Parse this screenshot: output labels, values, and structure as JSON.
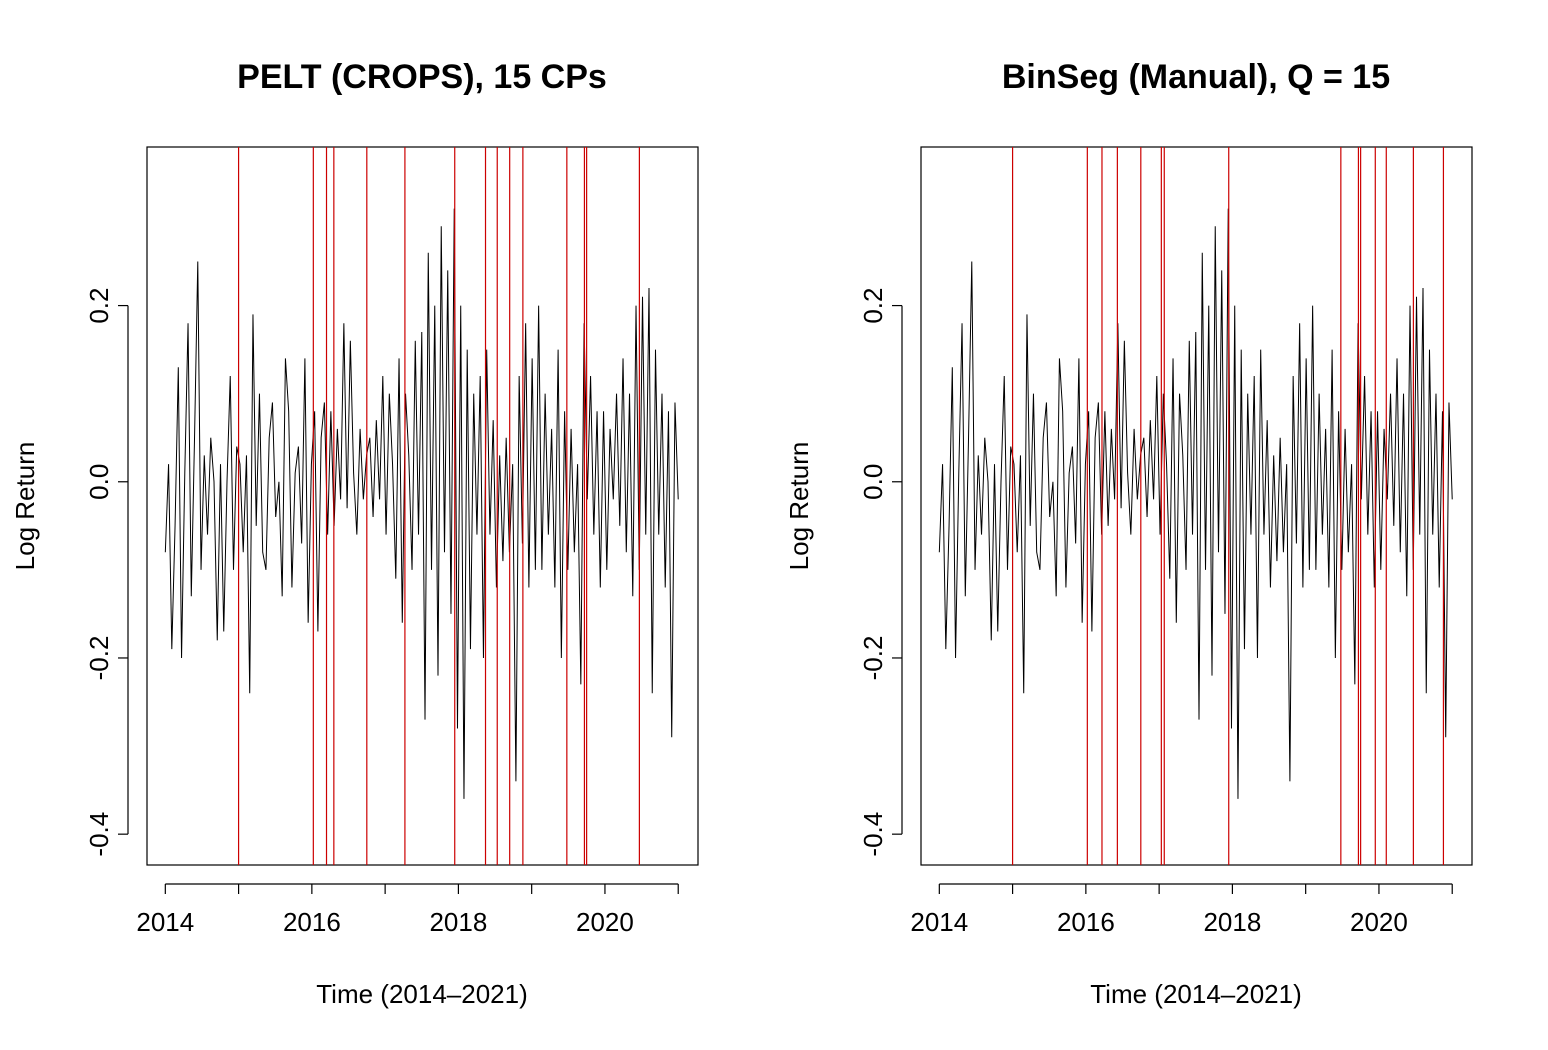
{
  "chart_data": [
    {
      "type": "line",
      "title": "PELT (CROPS), 15 CPs",
      "xlabel": "Time (2014–2021)",
      "ylabel": "Log Return",
      "xlim": [
        2013.75,
        2021.27
      ],
      "ylim": [
        -0.435,
        0.38
      ],
      "x_ticks": [
        2014,
        2015,
        2016,
        2017,
        2018,
        2019,
        2020,
        2021
      ],
      "x_tick_labels": [
        "2014",
        "",
        "2016",
        "",
        "2018",
        "",
        "2020",
        ""
      ],
      "y_ticks": [
        -0.4,
        -0.2,
        0.0,
        0.2
      ],
      "y_tick_labels": [
        "-0.4",
        "-0.2",
        "0.0",
        "0.2"
      ],
      "grid": false,
      "series": [
        {
          "color": "#000000",
          "x_start": 2014.0,
          "x_end": 2021.0,
          "values": [
            -0.08,
            0.02,
            -0.19,
            -0.05,
            0.13,
            -0.2,
            0.01,
            0.18,
            -0.13,
            0.05,
            0.25,
            -0.1,
            0.03,
            -0.06,
            0.05,
            0.0,
            -0.18,
            0.02,
            -0.17,
            0.0,
            0.12,
            -0.1,
            0.04,
            0.02,
            -0.08,
            0.03,
            -0.24,
            0.19,
            -0.05,
            0.1,
            -0.08,
            -0.1,
            0.05,
            0.09,
            -0.04,
            0.0,
            -0.13,
            0.14,
            0.08,
            -0.12,
            0.01,
            0.04,
            -0.07,
            0.14,
            -0.16,
            0.02,
            0.08,
            -0.17,
            0.05,
            0.09,
            -0.06,
            0.08,
            -0.05,
            0.06,
            -0.02,
            0.18,
            -0.03,
            0.16,
            0.01,
            -0.06,
            0.06,
            -0.02,
            0.03,
            0.05,
            -0.04,
            0.07,
            -0.02,
            0.12,
            -0.06,
            0.1,
            0.02,
            -0.11,
            0.14,
            -0.16,
            0.1,
            0.03,
            -0.1,
            0.16,
            -0.06,
            0.17,
            -0.27,
            0.26,
            -0.1,
            0.2,
            -0.22,
            0.29,
            -0.08,
            0.24,
            -0.15,
            0.31,
            -0.28,
            0.2,
            -0.36,
            0.15,
            -0.19,
            0.1,
            -0.06,
            0.12,
            -0.2,
            0.15,
            -0.06,
            0.07,
            -0.12,
            0.03,
            -0.09,
            0.05,
            -0.08,
            0.02,
            -0.34,
            0.12,
            -0.07,
            0.18,
            -0.12,
            0.14,
            -0.1,
            0.2,
            -0.1,
            0.1,
            -0.06,
            0.06,
            -0.12,
            0.15,
            -0.2,
            0.08,
            -0.1,
            0.06,
            -0.08,
            0.02,
            -0.23,
            0.18,
            -0.02,
            0.12,
            -0.06,
            0.08,
            -0.12,
            0.08,
            -0.1,
            0.06,
            -0.02,
            0.1,
            -0.05,
            0.14,
            -0.08,
            0.1,
            -0.13,
            0.2,
            -0.1,
            0.21,
            -0.06,
            0.22,
            -0.24,
            0.15,
            -0.06,
            0.1,
            -0.12,
            0.08,
            -0.29,
            0.09,
            -0.02
          ]
        }
      ],
      "changepoints": [
        2015.0,
        2016.02,
        2016.2,
        2016.3,
        2016.75,
        2017.27,
        2017.95,
        2018.37,
        2018.53,
        2018.7,
        2018.88,
        2019.48,
        2019.72,
        2019.75,
        2020.47
      ],
      "changepoint_color": "#cc0000"
    },
    {
      "type": "line",
      "title": "BinSeg (Manual), Q = 15",
      "xlabel": "Time (2014–2021)",
      "ylabel": "Log Return",
      "xlim": [
        2013.75,
        2021.27
      ],
      "ylim": [
        -0.435,
        0.38
      ],
      "x_ticks": [
        2014,
        2015,
        2016,
        2017,
        2018,
        2019,
        2020,
        2021
      ],
      "x_tick_labels": [
        "2014",
        "",
        "2016",
        "",
        "2018",
        "",
        "2020",
        ""
      ],
      "y_ticks": [
        -0.4,
        -0.2,
        0.0,
        0.2
      ],
      "y_tick_labels": [
        "-0.4",
        "-0.2",
        "0.0",
        "0.2"
      ],
      "grid": false,
      "series": [
        {
          "color": "#000000",
          "x_start": 2014.0,
          "x_end": 2021.0,
          "values": [
            -0.08,
            0.02,
            -0.19,
            -0.05,
            0.13,
            -0.2,
            0.01,
            0.18,
            -0.13,
            0.05,
            0.25,
            -0.1,
            0.03,
            -0.06,
            0.05,
            0.0,
            -0.18,
            0.02,
            -0.17,
            0.0,
            0.12,
            -0.1,
            0.04,
            0.02,
            -0.08,
            0.03,
            -0.24,
            0.19,
            -0.05,
            0.1,
            -0.08,
            -0.1,
            0.05,
            0.09,
            -0.04,
            0.0,
            -0.13,
            0.14,
            0.08,
            -0.12,
            0.01,
            0.04,
            -0.07,
            0.14,
            -0.16,
            0.02,
            0.08,
            -0.17,
            0.05,
            0.09,
            -0.06,
            0.08,
            -0.05,
            0.06,
            -0.02,
            0.18,
            -0.03,
            0.16,
            0.01,
            -0.06,
            0.06,
            -0.02,
            0.03,
            0.05,
            -0.04,
            0.07,
            -0.02,
            0.12,
            -0.06,
            0.1,
            0.02,
            -0.11,
            0.14,
            -0.16,
            0.1,
            0.03,
            -0.1,
            0.16,
            -0.06,
            0.17,
            -0.27,
            0.26,
            -0.1,
            0.2,
            -0.22,
            0.29,
            -0.08,
            0.24,
            -0.15,
            0.31,
            -0.28,
            0.2,
            -0.36,
            0.15,
            -0.19,
            0.1,
            -0.06,
            0.12,
            -0.2,
            0.15,
            -0.06,
            0.07,
            -0.12,
            0.03,
            -0.09,
            0.05,
            -0.08,
            0.02,
            -0.34,
            0.12,
            -0.07,
            0.18,
            -0.12,
            0.14,
            -0.1,
            0.2,
            -0.1,
            0.1,
            -0.06,
            0.06,
            -0.12,
            0.15,
            -0.2,
            0.08,
            -0.1,
            0.06,
            -0.08,
            0.02,
            -0.23,
            0.18,
            -0.02,
            0.12,
            -0.06,
            0.08,
            -0.12,
            0.08,
            -0.1,
            0.06,
            -0.02,
            0.1,
            -0.05,
            0.14,
            -0.08,
            0.1,
            -0.13,
            0.2,
            -0.1,
            0.21,
            -0.06,
            0.22,
            -0.24,
            0.15,
            -0.06,
            0.1,
            -0.12,
            0.08,
            -0.29,
            0.09,
            -0.02
          ]
        }
      ],
      "changepoints": [
        2015.0,
        2016.02,
        2016.22,
        2016.43,
        2016.75,
        2017.03,
        2017.07,
        2017.95,
        2019.48,
        2019.72,
        2019.75,
        2019.95,
        2020.1,
        2020.47,
        2020.88
      ],
      "changepoint_color": "#cc0000"
    }
  ]
}
